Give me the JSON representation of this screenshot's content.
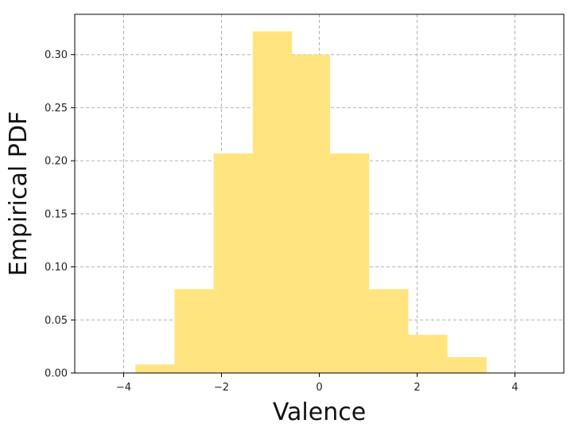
{
  "chart_data": {
    "type": "bar",
    "title": "",
    "xlabel": "Valence",
    "ylabel": "Empirical PDF",
    "xlim": [
      -5.0,
      5.0
    ],
    "ylim": [
      0.0,
      0.338
    ],
    "grid": true,
    "bar_color": "#ffe480",
    "bins": [
      {
        "x0": -3.76,
        "x1": -2.96,
        "value": 0.008
      },
      {
        "x0": -2.96,
        "x1": -2.16,
        "value": 0.079
      },
      {
        "x0": -2.16,
        "x1": -1.36,
        "value": 0.207
      },
      {
        "x0": -1.36,
        "x1": -0.56,
        "value": 0.322
      },
      {
        "x0": -0.56,
        "x1": 0.22,
        "value": 0.3
      },
      {
        "x0": 0.22,
        "x1": 1.02,
        "value": 0.207
      },
      {
        "x0": 1.02,
        "x1": 1.82,
        "value": 0.079
      },
      {
        "x0": 1.82,
        "x1": 2.62,
        "value": 0.036
      },
      {
        "x0": 2.62,
        "x1": 3.42,
        "value": 0.015
      }
    ],
    "x_ticks": [
      {
        "value": -4,
        "label": "−4"
      },
      {
        "value": -2,
        "label": "−2"
      },
      {
        "value": 0,
        "label": "0"
      },
      {
        "value": 2,
        "label": "2"
      },
      {
        "value": 4,
        "label": "4"
      }
    ],
    "y_ticks": [
      {
        "value": 0.0,
        "label": "0.00"
      },
      {
        "value": 0.05,
        "label": "0.05"
      },
      {
        "value": 0.1,
        "label": "0.10"
      },
      {
        "value": 0.15,
        "label": "0.15"
      },
      {
        "value": 0.2,
        "label": "0.20"
      },
      {
        "value": 0.25,
        "label": "0.25"
      },
      {
        "value": 0.3,
        "label": "0.30"
      }
    ]
  }
}
